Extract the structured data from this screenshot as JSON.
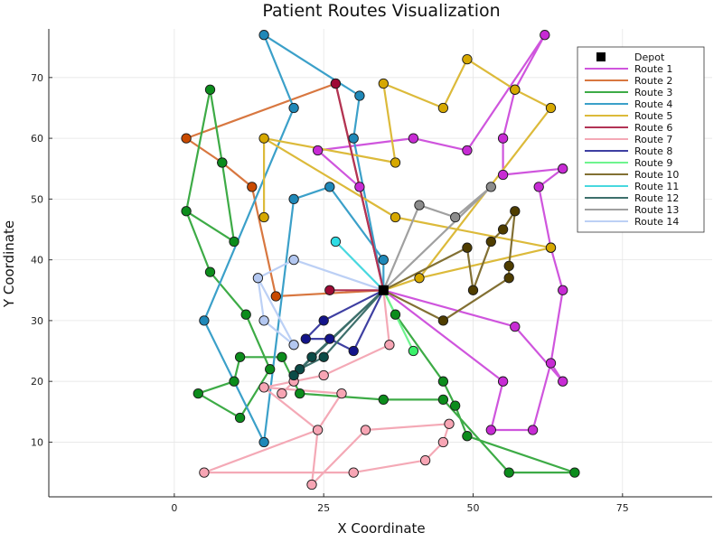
{
  "chart_data": {
    "type": "scatter",
    "title": "Patient Routes Visualization",
    "xlabel": "X Coordinate",
    "ylabel": "Y Coordinate",
    "xlim": [
      -21,
      90
    ],
    "ylim": [
      1,
      78
    ],
    "xticks": [
      0,
      25,
      50,
      75
    ],
    "yticks": [
      10,
      20,
      30,
      40,
      50,
      60,
      70
    ],
    "grid": true,
    "legend_position": "top-right",
    "depot": {
      "name": "Depot",
      "x": 35,
      "y": 35,
      "color": "#000000"
    },
    "series": [
      {
        "name": "Route 1",
        "color": "#c72bd4",
        "line": "#cf55dd",
        "points": [
          [
            35,
            35
          ],
          [
            57,
            29
          ],
          [
            65,
            20
          ],
          [
            63,
            23
          ],
          [
            65,
            35
          ],
          [
            63,
            42
          ],
          [
            61,
            52
          ],
          [
            65,
            55
          ],
          [
            55,
            54
          ],
          [
            55,
            60
          ],
          [
            57,
            68
          ],
          [
            62,
            77
          ],
          [
            49,
            58
          ],
          [
            40,
            60
          ],
          [
            24,
            58
          ],
          [
            31,
            52
          ],
          [
            35,
            35
          ],
          [
            55,
            20
          ],
          [
            53,
            12
          ],
          [
            60,
            12
          ],
          [
            63,
            23
          ]
        ]
      },
      {
        "name": "Route 2",
        "color": "#c94a00",
        "line": "#d87740",
        "points": [
          [
            35,
            35
          ],
          [
            17,
            34
          ],
          [
            13,
            52
          ],
          [
            8,
            56
          ],
          [
            2,
            60
          ],
          [
            27,
            69
          ],
          [
            35,
            35
          ]
        ]
      },
      {
        "name": "Route 3",
        "color": "#0c8c1c",
        "line": "#3dab46",
        "points": [
          [
            35,
            35
          ],
          [
            37,
            31
          ],
          [
            45,
            20
          ],
          [
            47,
            16
          ],
          [
            49,
            11
          ],
          [
            67,
            5
          ],
          [
            56,
            5
          ],
          [
            45,
            17
          ],
          [
            35,
            17
          ],
          [
            21,
            18
          ],
          [
            18,
            24
          ],
          [
            11,
            24
          ],
          [
            10,
            20
          ],
          [
            4,
            18
          ],
          [
            11,
            14
          ],
          [
            16,
            22
          ],
          [
            12,
            31
          ],
          [
            6,
            38
          ],
          [
            2,
            48
          ],
          [
            10,
            43
          ],
          [
            8,
            56
          ],
          [
            6,
            68
          ],
          [
            2,
            48
          ]
        ]
      },
      {
        "name": "Route 4",
        "color": "#1f88b8",
        "line": "#3ba0c9",
        "points": [
          [
            35,
            35
          ],
          [
            35,
            40
          ],
          [
            26,
            52
          ],
          [
            20,
            50
          ],
          [
            15,
            10
          ],
          [
            5,
            30
          ],
          [
            20,
            65
          ],
          [
            15,
            77
          ],
          [
            31,
            67
          ],
          [
            30,
            60
          ],
          [
            35,
            35
          ]
        ]
      },
      {
        "name": "Route 5",
        "color": "#d6a800",
        "line": "#dcba3a",
        "points": [
          [
            35,
            35
          ],
          [
            41,
            37
          ],
          [
            63,
            42
          ],
          [
            37,
            47
          ],
          [
            15,
            60
          ],
          [
            15,
            47
          ],
          [
            15,
            60
          ],
          [
            37,
            56
          ],
          [
            35,
            69
          ],
          [
            45,
            65
          ],
          [
            49,
            73
          ],
          [
            57,
            68
          ],
          [
            63,
            65
          ],
          [
            41,
            37
          ]
        ]
      },
      {
        "name": "Route 6",
        "color": "#9e0a35",
        "line": "#b23355",
        "points": [
          [
            35,
            35
          ],
          [
            26,
            35
          ],
          [
            35,
            35
          ],
          [
            27,
            69
          ]
        ]
      },
      {
        "name": "Route 7",
        "color": "#f7a5b4",
        "line": "#f4a9b6",
        "points": [
          [
            35,
            35
          ],
          [
            36,
            26
          ],
          [
            25,
            21
          ],
          [
            20,
            20
          ],
          [
            18,
            18
          ],
          [
            20,
            20
          ],
          [
            15,
            19
          ],
          [
            28,
            18
          ],
          [
            24,
            12
          ],
          [
            5,
            5
          ],
          [
            30,
            5
          ],
          [
            42,
            7
          ],
          [
            45,
            10
          ],
          [
            46,
            13
          ],
          [
            32,
            12
          ],
          [
            23,
            3
          ],
          [
            24,
            12
          ],
          [
            15,
            19
          ]
        ]
      },
      {
        "name": "Route 8",
        "color": "#13148a",
        "line": "#3e3fa2",
        "points": [
          [
            35,
            35
          ],
          [
            25,
            30
          ],
          [
            22,
            27
          ],
          [
            26,
            27
          ],
          [
            30,
            25
          ],
          [
            35,
            35
          ]
        ]
      },
      {
        "name": "Route 9",
        "color": "#3af06a",
        "line": "#6ef48e",
        "points": [
          [
            35,
            35
          ],
          [
            40,
            25
          ],
          [
            35,
            35
          ]
        ]
      },
      {
        "name": "Route 10",
        "color": "#4f3d00",
        "line": "#827033",
        "points": [
          [
            35,
            35
          ],
          [
            45,
            30
          ],
          [
            56,
            37
          ],
          [
            56,
            39
          ],
          [
            57,
            48
          ],
          [
            55,
            45
          ],
          [
            53,
            43
          ],
          [
            50,
            35
          ],
          [
            49,
            42
          ],
          [
            35,
            35
          ]
        ]
      },
      {
        "name": "Route 11",
        "color": "#2fdce4",
        "line": "#48d8df",
        "points": [
          [
            35,
            35
          ],
          [
            27,
            43
          ],
          [
            35,
            35
          ]
        ]
      },
      {
        "name": "Route 12",
        "color": "#0b4b47",
        "line": "#3d6f6b",
        "points": [
          [
            35,
            35
          ],
          [
            25,
            24
          ],
          [
            21,
            22
          ],
          [
            25,
            24
          ],
          [
            35,
            35
          ],
          [
            23,
            24
          ],
          [
            20,
            21
          ],
          [
            35,
            35
          ]
        ]
      },
      {
        "name": "Route 13",
        "color": "#8c8c8c",
        "line": "#a0a0a0",
        "points": [
          [
            35,
            35
          ],
          [
            53,
            52
          ],
          [
            47,
            47
          ],
          [
            41,
            49
          ],
          [
            35,
            35
          ]
        ]
      },
      {
        "name": "Route 14",
        "color": "#b3c7f0",
        "line": "#bcd0f5",
        "points": [
          [
            35,
            35
          ],
          [
            20,
            40
          ],
          [
            14,
            37
          ],
          [
            20,
            26
          ],
          [
            15,
            30
          ],
          [
            14,
            37
          ]
        ]
      }
    ]
  }
}
